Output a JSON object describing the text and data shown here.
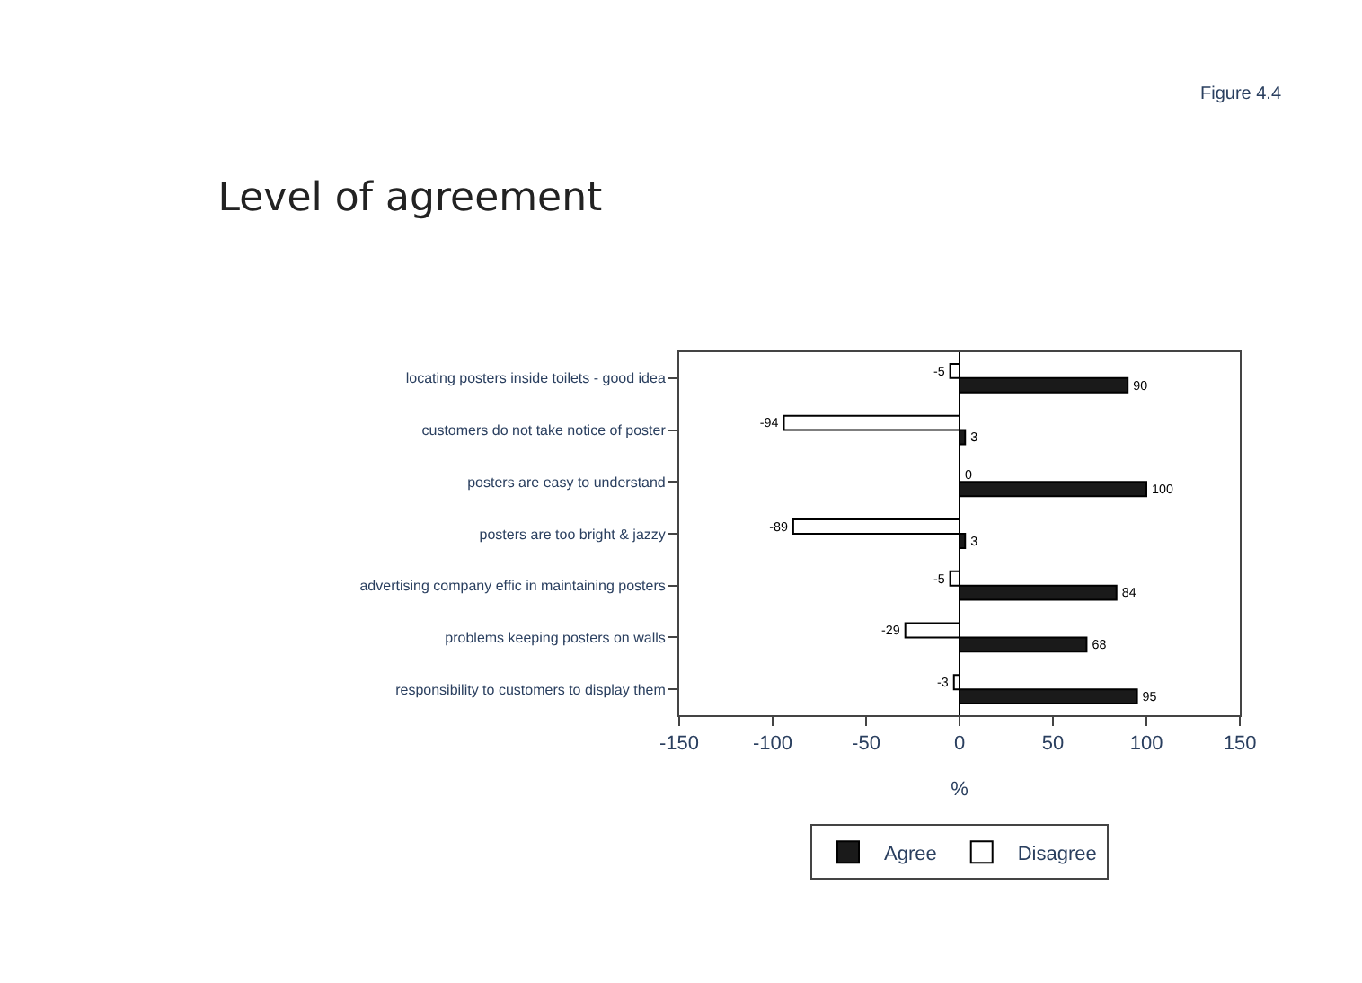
{
  "chart_data": {
    "type": "bar",
    "orientation": "horizontal",
    "title": "Level of agreement",
    "xlabel": "%",
    "categories": [
      "locating posters inside toilets - good idea",
      "customers do not take notice of poster",
      "posters are easy to understand",
      "posters are too bright & jazzy",
      "advertising company effic in maintaining posters",
      "problems keeping posters on walls",
      "responsibility to customers to display them"
    ],
    "series": [
      {
        "name": "Agree",
        "color": "#1a1a1a",
        "values": [
          90,
          3,
          100,
          3,
          84,
          68,
          95
        ]
      },
      {
        "name": "Disagree",
        "color": "#ffffff",
        "values": [
          -5,
          -94,
          0,
          -89,
          -5,
          -29,
          -3
        ]
      }
    ],
    "xlim": [
      -150,
      150
    ],
    "xticks": [
      -150,
      -100,
      -50,
      0,
      50,
      100,
      150
    ],
    "ref_lines": [
      {
        "axis": "x",
        "value": 0,
        "color": "#000000"
      }
    ],
    "data_labels": true,
    "grid": false,
    "legend": "bottom",
    "annotations": [
      "Figure 4.4"
    ]
  }
}
